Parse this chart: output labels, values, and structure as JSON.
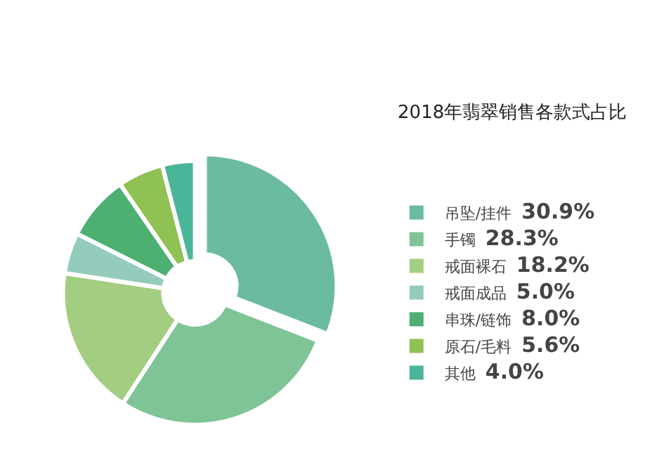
{
  "chart_data": {
    "type": "donut",
    "title": "2018年翡翠销售各款式占比",
    "categories": [
      "吊坠/挂件",
      "手镯",
      "戒面裸石",
      "戒面成品",
      "串珠/链饰",
      "原石/毛料",
      "其他"
    ],
    "values": [
      30.9,
      28.3,
      18.2,
      5.0,
      8.0,
      5.6,
      4.0
    ],
    "value_labels": [
      "30.9%",
      "28.3%",
      "18.2%",
      "5.0%",
      "8.0%",
      "5.6%",
      "4.0%"
    ],
    "colors": [
      "#6bbb9e",
      "#7fc496",
      "#a3cd80",
      "#93ccbc",
      "#4daf72",
      "#8fc153",
      "#4bb59a"
    ],
    "legend": "right"
  }
}
